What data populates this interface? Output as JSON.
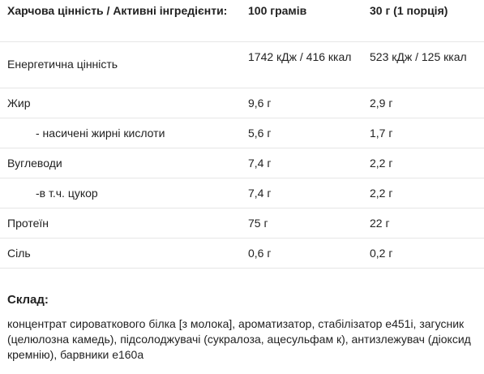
{
  "table": {
    "header": {
      "col1": "Харчова цінність / Активні інгредієнти:",
      "col2": "100 грамів",
      "col3": "30 г (1 порція)"
    },
    "rows": [
      {
        "name": "Енергетична цінність",
        "per100": "1742 кДж / 416 ккал",
        "perServing": "523 кДж / 125 ккал"
      },
      {
        "name": "Жир",
        "per100": "9,6 г",
        "perServing": "2,9 г"
      },
      {
        "name": "- насичені жирні кислоти",
        "per100": "5,6 г",
        "perServing": "1,7 г"
      },
      {
        "name": "Вуглеводи",
        "per100": "7,4 г",
        "perServing": "2,2 г"
      },
      {
        "name": "-в т.ч. цукор",
        "per100": "7,4 г",
        "perServing": "2,2 г"
      },
      {
        "name": "Протеїн",
        "per100": "75 г",
        "perServing": "22 г"
      },
      {
        "name": "Сіль",
        "per100": "0,6 г",
        "perServing": "0,2 г"
      }
    ]
  },
  "composition": {
    "title": "Склад:",
    "text": "концентрат сироваткового білка [з молока], ароматизатор, стабілізатор e451i, загусник (целюлозна камедь), підсолоджувачі (сукралоза, ацесульфам к), антизлежувач (діоксид кремнію), барвники e160a"
  }
}
